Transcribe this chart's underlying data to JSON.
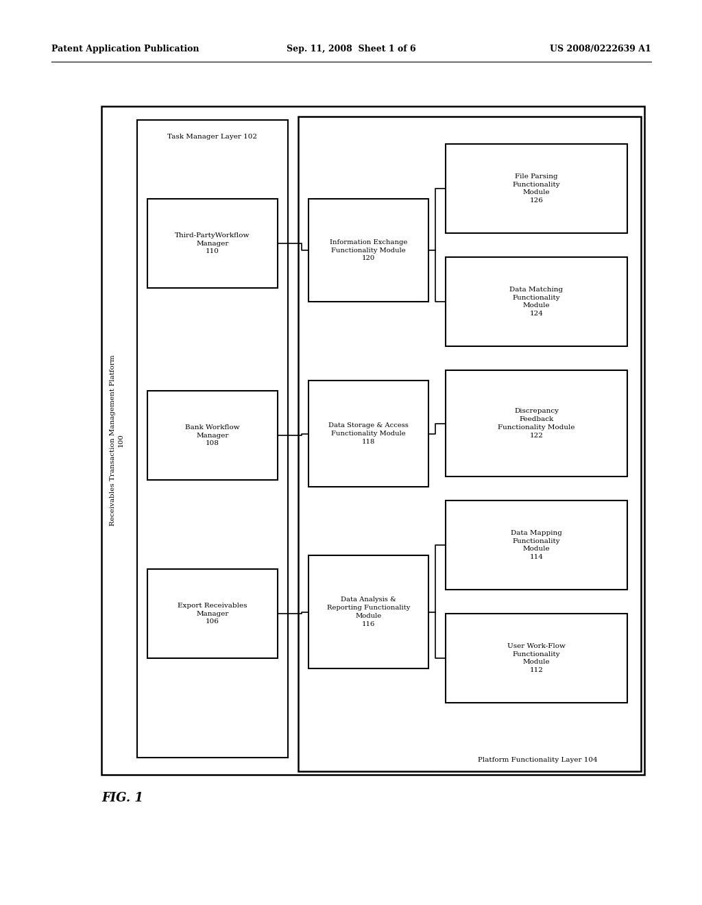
{
  "bg_color": "#ffffff",
  "header_left": "Patent Application Publication",
  "header_center": "Sep. 11, 2008  Sheet 1 of 6",
  "header_right": "US 2008/0222639 A1",
  "fig_label": "FIG. 1",
  "outer_box_label": "Receivables Transaction Management Platform\n100",
  "task_manager_box_label": "Task Manager Layer 102",
  "platform_functionality_label": "Platform Functionality Layer 104",
  "boxes": {
    "export_receivables": {
      "label": "Export Receivables\nManager\n106"
    },
    "bank_workflow": {
      "label": "Bank Workflow\nManager\n108"
    },
    "third_party": {
      "label": "Third-PartyWorkflow\nManager\n110"
    },
    "data_analysis": {
      "label": "Data Analysis &\nReporting Functionality\nModule\n116"
    },
    "data_storage": {
      "label": "Data Storage & Access\nFunctionality Module\n118"
    },
    "information_exchange": {
      "label": "Information Exchange\nFunctionality Module\n120"
    },
    "user_workflow": {
      "label": "User Work-Flow\nFunctionality\nModule\n112"
    },
    "data_mapping": {
      "label": "Data Mapping\nFunctionality\nModule\n114"
    },
    "discrepancy": {
      "label": "Discrepancy\nFeedback\nFunctionality Module\n122"
    },
    "data_matching": {
      "label": "Data Matching\nFunctionality\nModule\n124"
    },
    "file_parsing": {
      "label": "File Parsing\nFunctionality\nModule\n126"
    }
  }
}
